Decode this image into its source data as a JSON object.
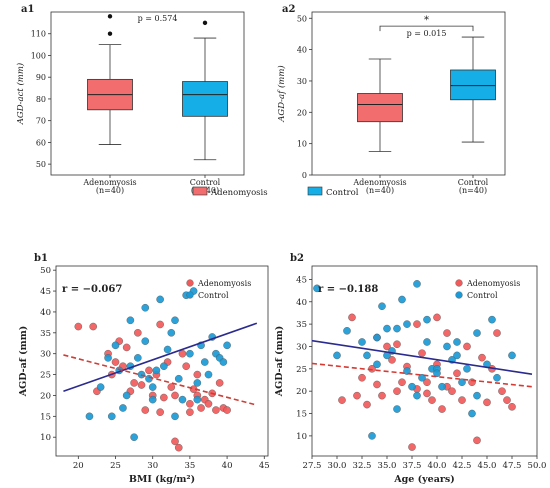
{
  "colors": {
    "adenomyosis": "#f26d6d",
    "adenomyosis_dot": "#f15a5a",
    "control": "#16aee6",
    "control_dot": "#1a9ad6",
    "trend_control": "#2a2a8f",
    "trend_adeno": "#d63a32"
  },
  "legend": {
    "adenomyosis": "Adenomyosis",
    "control": "Control"
  },
  "chart_data": [
    {
      "id": "a1",
      "type": "box",
      "panel_label": "a1",
      "ylabel": "AGD-act (mm)",
      "ylim": [
        45,
        120
      ],
      "yticks": [
        50,
        60,
        70,
        80,
        90,
        100,
        110
      ],
      "annotation": "p = 0.574",
      "groups": [
        {
          "name": "Adenomyosis",
          "n": "(n=40)",
          "min": 59,
          "q1": 75,
          "median": 82,
          "q3": 89,
          "max": 105,
          "outliers": [
            110,
            118
          ]
        },
        {
          "name": "Control",
          "n": "(n=40)",
          "min": 52,
          "q1": 72,
          "median": 82,
          "q3": 88,
          "max": 108,
          "outliers": [
            115
          ]
        }
      ]
    },
    {
      "id": "a2",
      "type": "box",
      "panel_label": "a2",
      "ylabel": "AGD-af (mm)",
      "ylim": [
        0,
        52
      ],
      "yticks": [
        0,
        10,
        20,
        30,
        40,
        50
      ],
      "annotation": "p = 0.015",
      "significance": "*",
      "groups": [
        {
          "name": "Adenomyosis",
          "n": "(n=40)",
          "min": 7.5,
          "q1": 17,
          "median": 22.5,
          "q3": 26,
          "max": 37,
          "outliers": []
        },
        {
          "name": "Control",
          "n": "(n=40)",
          "min": 10.5,
          "q1": 24,
          "median": 28.5,
          "q3": 33.5,
          "max": 44,
          "outliers": []
        }
      ]
    },
    {
      "id": "b1",
      "type": "scatter",
      "panel_label": "b1",
      "xlabel": "BMI (kg/m²)",
      "ylabel": "AGD-af (mm)",
      "xlim": [
        17,
        45.5
      ],
      "ylim": [
        5.5,
        51
      ],
      "xticks": [
        20,
        25,
        30,
        35,
        40,
        45
      ],
      "yticks": [
        10,
        15,
        20,
        25,
        30,
        35,
        40,
        45,
        50
      ],
      "r_label": "r = −0.067",
      "series": [
        {
          "name": "Adenomyosis",
          "points": [
            [
              20,
              36.5
            ],
            [
              22,
              36.5
            ],
            [
              24,
              30
            ],
            [
              25,
              28
            ],
            [
              25.5,
              33
            ],
            [
              26,
              27
            ],
            [
              27,
              21
            ],
            [
              27.5,
              23
            ],
            [
              28,
              35
            ],
            [
              28.5,
              22.5
            ],
            [
              29,
              16.5
            ],
            [
              29.5,
              26
            ],
            [
              30,
              20
            ],
            [
              30.5,
              25
            ],
            [
              31,
              37
            ],
            [
              31.5,
              19.5
            ],
            [
              32,
              28
            ],
            [
              32.5,
              22
            ],
            [
              33,
              9
            ],
            [
              33.5,
              7.5
            ],
            [
              34,
              30
            ],
            [
              34.5,
              27
            ],
            [
              35,
              18
            ],
            [
              35.5,
              21.5
            ],
            [
              36,
              20
            ],
            [
              36.5,
              17
            ],
            [
              37,
              19
            ],
            [
              37.5,
              18
            ],
            [
              38,
              20.5
            ],
            [
              38.5,
              16.5
            ],
            [
              39,
              23
            ],
            [
              39.5,
              17
            ],
            [
              40,
              16.5
            ],
            [
              22.5,
              21
            ],
            [
              24.5,
              25
            ],
            [
              26.5,
              31.5
            ],
            [
              31,
              16
            ],
            [
              33,
              20
            ],
            [
              35,
              16
            ],
            [
              36,
              25
            ]
          ]
        },
        {
          "name": "Control",
          "points": [
            [
              21.5,
              15
            ],
            [
              23,
              22
            ],
            [
              24,
              29
            ],
            [
              24.5,
              15
            ],
            [
              25,
              32
            ],
            [
              25.5,
              26
            ],
            [
              26,
              17
            ],
            [
              26.5,
              20
            ],
            [
              27,
              27
            ],
            [
              27.5,
              10
            ],
            [
              28,
              29
            ],
            [
              28.5,
              25
            ],
            [
              29,
              33
            ],
            [
              29.5,
              24
            ],
            [
              30,
              22
            ],
            [
              30.5,
              26
            ],
            [
              31,
              43
            ],
            [
              31.5,
              27
            ],
            [
              32,
              31
            ],
            [
              32.5,
              35
            ],
            [
              33,
              38
            ],
            [
              33.5,
              24
            ],
            [
              34,
              19
            ],
            [
              34.5,
              44
            ],
            [
              35,
              30
            ],
            [
              35.5,
              45
            ],
            [
              36,
              23
            ],
            [
              36.5,
              32
            ],
            [
              37,
              28
            ],
            [
              37.5,
              25
            ],
            [
              38,
              34
            ],
            [
              38.5,
              30
            ],
            [
              39,
              29
            ],
            [
              39.5,
              28
            ],
            [
              40,
              32
            ],
            [
              27,
              38
            ],
            [
              29,
              41
            ],
            [
              33,
              15
            ],
            [
              36,
              19
            ],
            [
              30,
              19
            ]
          ]
        }
      ],
      "trend_lines": [
        {
          "name": "Control",
          "style": "solid",
          "from": [
            18,
            21
          ],
          "to": [
            44,
            37.3
          ]
        },
        {
          "name": "Adenomyosis",
          "style": "dashed",
          "from": [
            18,
            29.7
          ],
          "to": [
            44,
            17.7
          ]
        }
      ]
    },
    {
      "id": "b2",
      "type": "scatter",
      "panel_label": "b2",
      "xlabel": "Age (years)",
      "ylabel": "AGD-af (mm)",
      "xlim": [
        27.5,
        50
      ],
      "ylim": [
        5.5,
        48
      ],
      "xticks": [
        27.5,
        30.0,
        32.5,
        35.0,
        37.5,
        40.0,
        42.5,
        45.0,
        47.5,
        50.0
      ],
      "xtick_labels": [
        "27.5",
        "30.0",
        "32.5",
        "35.0",
        "37.5",
        "40.0",
        "42.5",
        "45.0",
        "47.5",
        "50.0"
      ],
      "yticks": [
        10,
        15,
        20,
        25,
        30,
        35,
        40,
        45
      ],
      "r_label": "r = −0.188",
      "series": [
        {
          "name": "Adenomyosis",
          "points": [
            [
              30.5,
              18
            ],
            [
              31.5,
              36.5
            ],
            [
              32,
              19
            ],
            [
              32.5,
              23
            ],
            [
              33,
              17
            ],
            [
              33.5,
              25
            ],
            [
              34,
              21.5
            ],
            [
              34.5,
              19
            ],
            [
              35,
              30
            ],
            [
              35.5,
              27
            ],
            [
              36,
              20
            ],
            [
              36.5,
              22
            ],
            [
              37,
              25.5
            ],
            [
              37.5,
              7.5
            ],
            [
              38,
              20.5
            ],
            [
              38.5,
              28.5
            ],
            [
              39,
              22
            ],
            [
              39.5,
              18
            ],
            [
              40,
              26
            ],
            [
              40.5,
              16
            ],
            [
              41,
              21
            ],
            [
              41.5,
              20
            ],
            [
              42,
              24
            ],
            [
              42.5,
              18
            ],
            [
              43,
              30
            ],
            [
              43.5,
              22
            ],
            [
              44,
              9
            ],
            [
              44.5,
              27.5
            ],
            [
              45,
              17.5
            ],
            [
              45.5,
              25
            ],
            [
              46,
              33
            ],
            [
              46.5,
              20
            ],
            [
              47,
              18
            ],
            [
              47.5,
              16.5
            ],
            [
              36,
              30.5
            ],
            [
              38,
              35
            ],
            [
              40,
              36.5
            ],
            [
              41,
              33
            ],
            [
              34,
              32
            ],
            [
              39,
              19.5
            ]
          ]
        },
        {
          "name": "Control",
          "points": [
            [
              28,
              43
            ],
            [
              30,
              28
            ],
            [
              31,
              33.5
            ],
            [
              32.5,
              31
            ],
            [
              33,
              28
            ],
            [
              33.5,
              10
            ],
            [
              34,
              32
            ],
            [
              34.5,
              39
            ],
            [
              35,
              28
            ],
            [
              35.5,
              29
            ],
            [
              36,
              16
            ],
            [
              36.5,
              40.5
            ],
            [
              37,
              24.5
            ],
            [
              37.5,
              21
            ],
            [
              38,
              44
            ],
            [
              38.5,
              23
            ],
            [
              39,
              31
            ],
            [
              39.5,
              25
            ],
            [
              40,
              25
            ],
            [
              40.5,
              21
            ],
            [
              41,
              30
            ],
            [
              41.5,
              27
            ],
            [
              42,
              31
            ],
            [
              42.5,
              22
            ],
            [
              43,
              25
            ],
            [
              43.5,
              15
            ],
            [
              44,
              19
            ],
            [
              45,
              26
            ],
            [
              45.5,
              36
            ],
            [
              46,
              23
            ],
            [
              47.5,
              28
            ],
            [
              35,
              34
            ],
            [
              37,
              35
            ],
            [
              39,
              36
            ],
            [
              36,
              34
            ],
            [
              38,
              19
            ],
            [
              40,
              24
            ],
            [
              34,
              26
            ],
            [
              44,
              33
            ],
            [
              42,
              28
            ]
          ]
        }
      ],
      "trend_lines": [
        {
          "name": "Control",
          "style": "solid",
          "from": [
            27.5,
            31.3
          ],
          "to": [
            49.5,
            23.8
          ]
        },
        {
          "name": "Adenomyosis",
          "style": "dashed",
          "from": [
            27.5,
            26.2
          ],
          "to": [
            49.5,
            21
          ]
        }
      ]
    }
  ]
}
